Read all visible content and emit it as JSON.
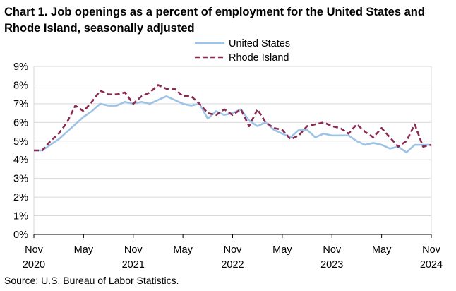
{
  "chart_data": {
    "type": "line",
    "title": "Chart 1. Job openings as a percent of employment for the United States and Rhode Island, seasonally adjusted",
    "source": "Source: U.S. Bureau of Labor Statistics.",
    "ylim": [
      0,
      9
    ],
    "yticks": [
      0,
      1,
      2,
      3,
      4,
      5,
      6,
      7,
      8,
      9
    ],
    "ytick_labels": [
      "0%",
      "1%",
      "2%",
      "3%",
      "4%",
      "5%",
      "6%",
      "7%",
      "8%",
      "9%"
    ],
    "x": [
      "Nov 2020",
      "Dec 2020",
      "Jan 2021",
      "Feb 2021",
      "Mar 2021",
      "Apr 2021",
      "May 2021",
      "Jun 2021",
      "Jul 2021",
      "Aug 2021",
      "Sep 2021",
      "Oct 2021",
      "Nov 2021",
      "Dec 2021",
      "Jan 2022",
      "Feb 2022",
      "Mar 2022",
      "Apr 2022",
      "May 2022",
      "Jun 2022",
      "Jul 2022",
      "Aug 2022",
      "Sep 2022",
      "Oct 2022",
      "Nov 2022",
      "Dec 2022",
      "Jan 2023",
      "Feb 2023",
      "Mar 2023",
      "Apr 2023",
      "May 2023",
      "Jun 2023",
      "Jul 2023",
      "Aug 2023",
      "Sep 2023",
      "Oct 2023",
      "Nov 2023",
      "Dec 2023",
      "Jan 2024",
      "Feb 2024",
      "Mar 2024",
      "Apr 2024",
      "May 2024",
      "Jun 2024",
      "Jul 2024",
      "Aug 2024",
      "Sep 2024",
      "Oct 2024",
      "Nov 2024"
    ],
    "xtick_labels": [
      {
        "index": 0,
        "month": "Nov",
        "year": "2020"
      },
      {
        "index": 6,
        "month": "May",
        "year": ""
      },
      {
        "index": 12,
        "month": "Nov",
        "year": "2021"
      },
      {
        "index": 18,
        "month": "May",
        "year": ""
      },
      {
        "index": 24,
        "month": "Nov",
        "year": "2022"
      },
      {
        "index": 30,
        "month": "May",
        "year": ""
      },
      {
        "index": 36,
        "month": "Nov",
        "year": "2023"
      },
      {
        "index": 42,
        "month": "May",
        "year": ""
      },
      {
        "index": 48,
        "month": "Nov",
        "year": "2024"
      }
    ],
    "legend_position": "top-center",
    "series": [
      {
        "name": "United States",
        "color": "#9dc3e6",
        "style": "solid",
        "values": [
          4.5,
          4.5,
          4.8,
          5.1,
          5.5,
          5.9,
          6.3,
          6.6,
          7.0,
          6.9,
          6.9,
          7.1,
          7.0,
          7.1,
          7.0,
          7.2,
          7.4,
          7.2,
          7.0,
          6.9,
          7.0,
          6.2,
          6.6,
          6.4,
          6.5,
          6.7,
          6.1,
          5.8,
          6.0,
          5.6,
          5.4,
          5.2,
          5.6,
          5.6,
          5.2,
          5.4,
          5.3,
          5.3,
          5.3,
          5.0,
          4.8,
          4.9,
          4.8,
          4.6,
          4.7,
          4.4,
          4.8,
          4.8,
          4.8
        ]
      },
      {
        "name": "Rhode Island",
        "color": "#8b2a52",
        "style": "dashed",
        "values": [
          4.5,
          4.5,
          5.0,
          5.4,
          6.0,
          6.9,
          6.6,
          7.1,
          7.7,
          7.5,
          7.5,
          7.6,
          7.0,
          7.4,
          7.6,
          8.0,
          7.8,
          7.8,
          7.4,
          7.4,
          7.0,
          6.5,
          6.4,
          6.7,
          6.4,
          6.7,
          5.8,
          6.7,
          6.0,
          5.7,
          5.6,
          5.1,
          5.3,
          5.8,
          5.9,
          6.0,
          5.8,
          5.7,
          5.4,
          5.9,
          5.5,
          5.2,
          5.7,
          5.2,
          4.7,
          5.0,
          5.9,
          4.7,
          4.8
        ]
      }
    ]
  }
}
